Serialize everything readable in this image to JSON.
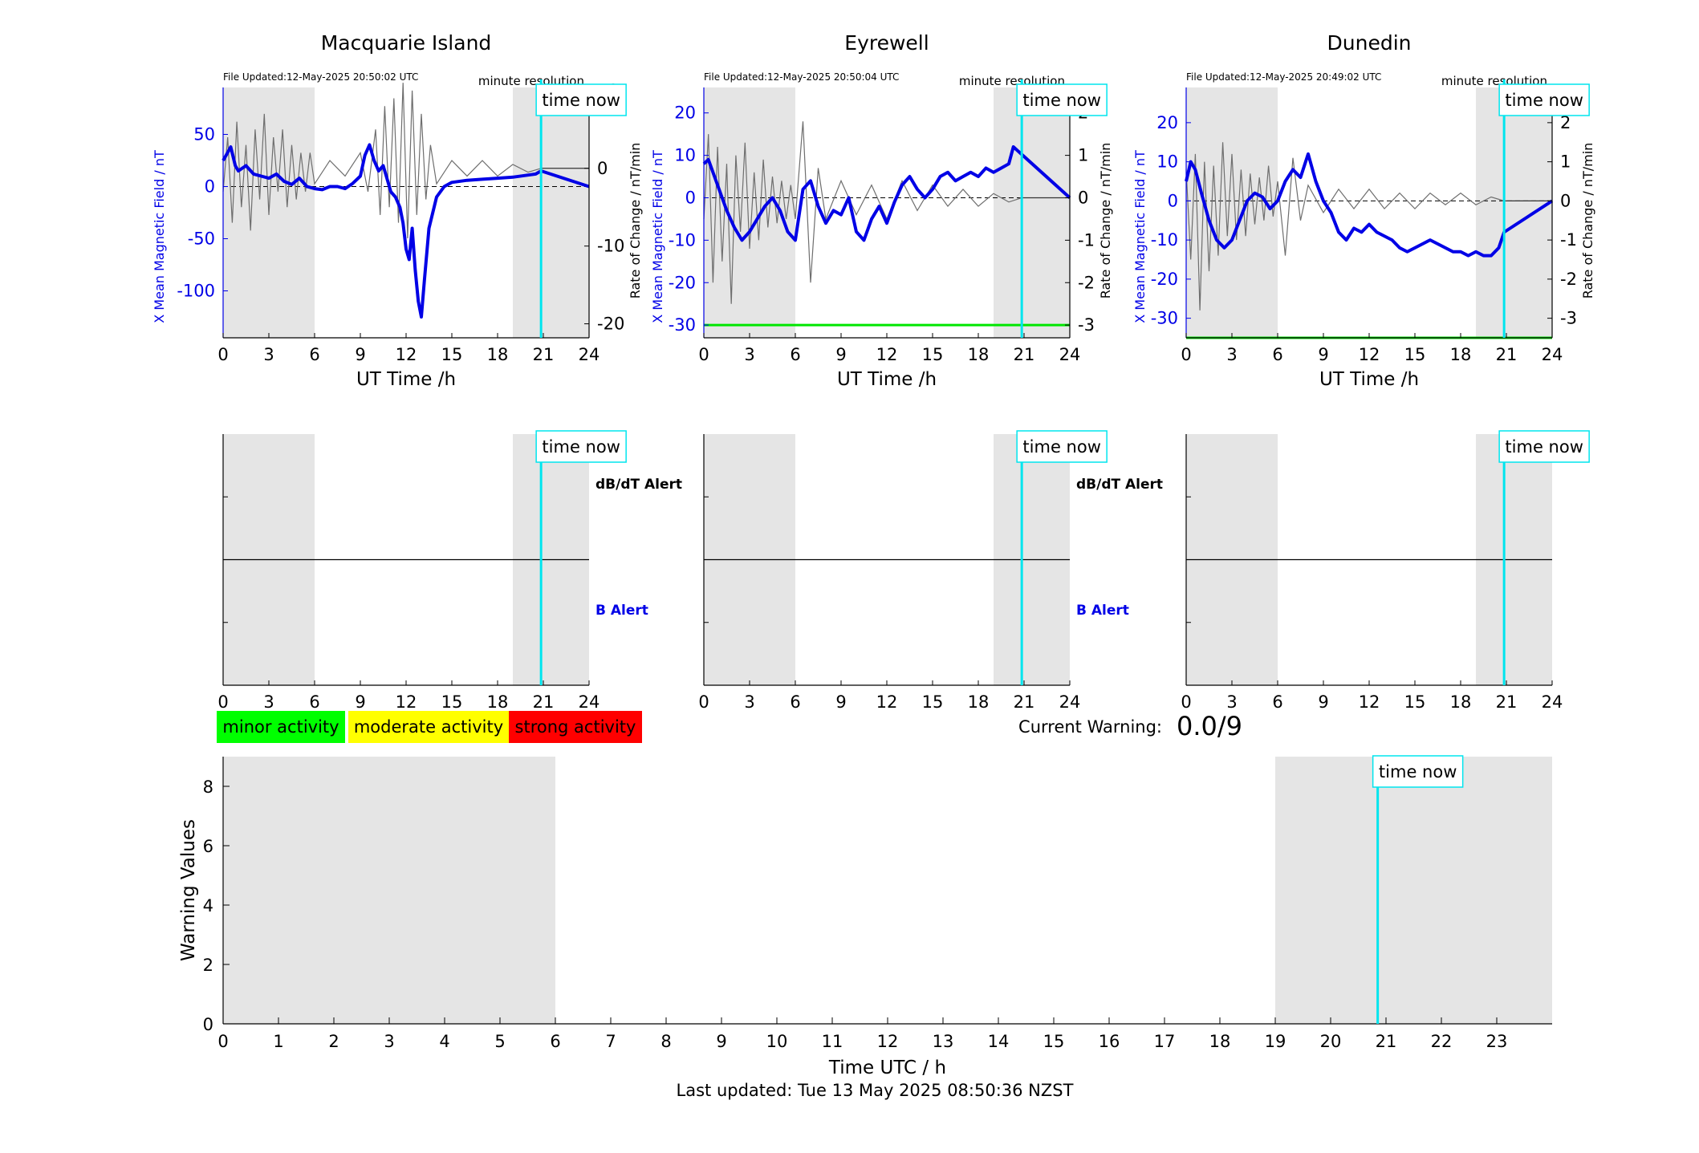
{
  "footer": {
    "last_updated": "Last updated: Tue 13 May 2025 08:50:36 NZST"
  },
  "colors": {
    "field_line": "#0000e6",
    "rate_line": "#6e6e6e",
    "now_line": "#00e5ee",
    "shade": "#e5e5e5",
    "minor": "#00ff00",
    "moderate": "#ffff00",
    "strong": "#ff0000",
    "threshold": "#00e600"
  },
  "labels": {
    "time_now": "time now",
    "minute_resolution": "minute resolution",
    "xlabel_top": "UT Time /h",
    "ylabel_left": "X Mean Magnetic Field / nT",
    "ylabel_right": "Rate of Change / nT/min",
    "dbdt_alert": "dB/dT Alert",
    "b_alert": "B Alert"
  },
  "legend": {
    "minor": "minor activity",
    "moderate": "moderate activity",
    "strong": "strong activity"
  },
  "current_warning": {
    "label": "Current Warning:",
    "value": "0.0/9"
  },
  "chart_data": [
    {
      "type": "line",
      "title": "Macquarie Island",
      "file_updated": "File Updated:12-May-2025 20:50:02 UTC",
      "xlabel": "UT Time /h",
      "ylabel": "X Mean Magnetic Field / nT",
      "ylabel_right": "Rate of Change / nT/min",
      "xlim": [
        0,
        24
      ],
      "xticks": [
        0,
        3,
        6,
        9,
        12,
        15,
        18,
        21,
        24
      ],
      "ylim": [
        -145,
        95
      ],
      "yticks": [
        50,
        0,
        -50,
        -100
      ],
      "ylim_right": [
        -21.8,
        10.4
      ],
      "yticks_right": [
        10,
        0,
        -10,
        -20
      ],
      "shaded_ranges": [
        [
          0,
          6
        ],
        [
          19,
          24
        ]
      ],
      "time_now": 20.85,
      "series": [
        {
          "name": "X Mean Magnetic Field",
          "x": [
            0,
            0.2,
            0.5,
            0.8,
            1.0,
            1.5,
            2.0,
            2.5,
            3.0,
            3.5,
            4.0,
            4.5,
            5.0,
            5.5,
            6.0,
            6.5,
            7.0,
            7.5,
            8.0,
            8.5,
            9.0,
            9.3,
            9.6,
            9.9,
            10.2,
            10.5,
            10.8,
            11.0,
            11.3,
            11.6,
            11.8,
            12.0,
            12.2,
            12.4,
            12.6,
            12.8,
            13.0,
            13.2,
            13.5,
            14.0,
            14.5,
            15.0,
            16.0,
            17.0,
            18.0,
            19.0,
            20.0,
            20.5,
            20.85,
            24
          ],
          "y": [
            25,
            30,
            38,
            20,
            15,
            20,
            12,
            10,
            8,
            12,
            5,
            2,
            8,
            0,
            -2,
            -3,
            0,
            0,
            -2,
            3,
            10,
            30,
            40,
            25,
            15,
            20,
            5,
            -5,
            -10,
            -20,
            -35,
            -60,
            -70,
            -40,
            -80,
            -110,
            -125,
            -90,
            -40,
            -10,
            0,
            4,
            6,
            7,
            8,
            9,
            11,
            12,
            15,
            0
          ],
          "style": "thick"
        },
        {
          "name": "Rate of Change",
          "x": [
            0,
            0.3,
            0.6,
            0.9,
            1.2,
            1.5,
            1.8,
            2.1,
            2.4,
            2.7,
            3.0,
            3.3,
            3.6,
            3.9,
            4.2,
            4.5,
            4.8,
            5.1,
            5.4,
            5.7,
            6.0,
            7.0,
            8.0,
            9.0,
            9.5,
            10.0,
            10.3,
            10.6,
            10.9,
            11.2,
            11.5,
            11.8,
            12.1,
            12.4,
            12.7,
            13.0,
            13.3,
            13.6,
            14.0,
            15.0,
            16.0,
            17.0,
            18.0,
            19.0,
            20.0,
            20.85
          ],
          "y": [
            -3,
            4,
            -7,
            6,
            -5,
            3,
            -8,
            5,
            -4,
            7,
            -6,
            4,
            -3,
            5,
            -5,
            3,
            -4,
            2,
            -3,
            2,
            -2,
            1,
            -1,
            2,
            -3,
            5,
            -6,
            8,
            -5,
            9,
            -7,
            11,
            -9,
            10,
            -6,
            7,
            -4,
            3,
            -2,
            1,
            -1,
            1,
            -1,
            0.5,
            -0.5,
            0
          ]
        }
      ]
    },
    {
      "type": "line",
      "title": "Eyrewell",
      "file_updated": "File Updated:12-May-2025 20:50:04 UTC",
      "xlabel": "UT Time /h",
      "ylabel": "X Mean Magnetic Field / nT",
      "ylabel_right": "Rate of Change / nT/min",
      "xlim": [
        0,
        24
      ],
      "xticks": [
        0,
        3,
        6,
        9,
        12,
        15,
        18,
        21,
        24
      ],
      "ylim": [
        -33,
        26
      ],
      "yticks": [
        20,
        10,
        0,
        -10,
        -20,
        -30
      ],
      "ylim_right": [
        -3.3,
        2.6
      ],
      "yticks_right": [
        2,
        1,
        0,
        -1,
        -2,
        -3
      ],
      "shaded_ranges": [
        [
          0,
          6
        ],
        [
          19,
          24
        ]
      ],
      "time_now": 20.85,
      "threshold": -30,
      "series": [
        {
          "name": "X Mean Magnetic Field",
          "x": [
            0,
            0.3,
            0.6,
            1.0,
            1.5,
            2.0,
            2.5,
            3.0,
            3.5,
            4.0,
            4.5,
            5.0,
            5.5,
            6.0,
            6.5,
            7.0,
            7.5,
            8.0,
            8.5,
            9.0,
            9.5,
            10.0,
            10.5,
            11.0,
            11.5,
            12.0,
            12.5,
            13.0,
            13.5,
            14.0,
            14.5,
            15.0,
            15.5,
            16.0,
            16.5,
            17.0,
            17.5,
            18.0,
            18.5,
            19.0,
            19.5,
            20.0,
            20.3,
            24
          ],
          "y": [
            8,
            9,
            6,
            2,
            -3,
            -7,
            -10,
            -8,
            -5,
            -2,
            0,
            -3,
            -8,
            -10,
            2,
            4,
            -2,
            -6,
            -3,
            -4,
            0,
            -8,
            -10,
            -5,
            -2,
            -6,
            -1,
            3,
            5,
            2,
            0,
            2,
            5,
            6,
            4,
            5,
            6,
            5,
            7,
            6,
            7,
            8,
            12,
            0
          ],
          "style": "thick"
        },
        {
          "name": "Rate of Change",
          "x": [
            0,
            0.3,
            0.6,
            0.9,
            1.2,
            1.5,
            1.8,
            2.1,
            2.4,
            2.7,
            3.0,
            3.3,
            3.6,
            3.9,
            4.2,
            4.5,
            4.8,
            5.1,
            5.4,
            5.7,
            6.0,
            6.5,
            7.0,
            7.5,
            8.0,
            9.0,
            10.0,
            11.0,
            12.0,
            13.0,
            14.0,
            15.0,
            16.0,
            17.0,
            18.0,
            19.0,
            20.0,
            20.85
          ],
          "y": [
            -0.5,
            1.5,
            -2,
            1.2,
            -1.5,
            0.8,
            -2.5,
            1.0,
            -0.8,
            1.3,
            -1.2,
            0.6,
            -1.0,
            0.9,
            -0.7,
            0.5,
            -0.6,
            0.4,
            -0.5,
            0.3,
            -0.5,
            1.8,
            -2.0,
            0.7,
            -0.5,
            0.4,
            -0.4,
            0.3,
            -0.5,
            0.4,
            -0.3,
            0.3,
            -0.2,
            0.2,
            -0.2,
            0.1,
            -0.1,
            0
          ]
        }
      ]
    },
    {
      "type": "line",
      "title": "Dunedin",
      "file_updated": "File Updated:12-May-2025 20:49:02 UTC",
      "xlabel": "UT Time /h",
      "ylabel": "X Mean Magnetic Field / nT",
      "ylabel_right": "Rate of Change / nT/min",
      "xlim": [
        0,
        24
      ],
      "xticks": [
        0,
        3,
        6,
        9,
        12,
        15,
        18,
        21,
        24
      ],
      "ylim": [
        -35,
        29
      ],
      "yticks": [
        20,
        10,
        0,
        -10,
        -20,
        -30
      ],
      "ylim_right": [
        -3.5,
        2.9
      ],
      "yticks_right": [
        2,
        1,
        0,
        -1,
        -2,
        -3
      ],
      "shaded_ranges": [
        [
          0,
          6
        ],
        [
          19,
          24
        ]
      ],
      "time_now": 20.85,
      "threshold": -35,
      "series": [
        {
          "name": "X Mean Magnetic Field",
          "x": [
            0,
            0.3,
            0.6,
            1.0,
            1.5,
            2.0,
            2.5,
            3.0,
            3.5,
            4.0,
            4.5,
            5.0,
            5.5,
            6.0,
            6.5,
            7.0,
            7.5,
            8.0,
            8.5,
            9.0,
            9.5,
            10.0,
            10.5,
            11.0,
            11.5,
            12.0,
            12.5,
            13.0,
            13.5,
            14.0,
            14.5,
            15.0,
            15.5,
            16.0,
            16.5,
            17.0,
            17.5,
            18.0,
            18.5,
            19.0,
            19.5,
            20.0,
            20.5,
            20.85,
            24
          ],
          "y": [
            5,
            10,
            8,
            2,
            -5,
            -10,
            -12,
            -10,
            -5,
            0,
            2,
            1,
            -2,
            0,
            5,
            8,
            6,
            12,
            5,
            0,
            -3,
            -8,
            -10,
            -7,
            -8,
            -6,
            -8,
            -9,
            -10,
            -12,
            -13,
            -12,
            -11,
            -10,
            -11,
            -12,
            -13,
            -13,
            -14,
            -13,
            -14,
            -14,
            -12,
            -8,
            0
          ]
        },
        {
          "name": "Rate of Change",
          "x": [
            0,
            0.3,
            0.6,
            0.9,
            1.2,
            1.5,
            1.8,
            2.1,
            2.4,
            2.7,
            3.0,
            3.3,
            3.6,
            3.9,
            4.2,
            4.5,
            4.8,
            5.1,
            5.4,
            5.7,
            6.0,
            6.5,
            7.0,
            7.5,
            8.0,
            9.0,
            10.0,
            11.0,
            12.0,
            13.0,
            14.0,
            15.0,
            16.0,
            17.0,
            18.0,
            19.0,
            20.0,
            20.85
          ],
          "y": [
            0.8,
            -1.5,
            1.2,
            -2.8,
            1.0,
            -1.8,
            0.9,
            -1.4,
            1.5,
            -0.9,
            1.2,
            -1.0,
            0.8,
            -0.9,
            0.7,
            -0.6,
            0.6,
            -0.5,
            0.9,
            -0.4,
            0.5,
            -1.4,
            1.1,
            -0.5,
            0.4,
            -0.3,
            0.3,
            -0.2,
            0.3,
            -0.2,
            0.2,
            -0.2,
            0.2,
            -0.1,
            0.2,
            -0.1,
            0.1,
            0
          ]
        }
      ]
    },
    {
      "type": "line",
      "title": "",
      "ylabel": "",
      "xlim": [
        0,
        24
      ],
      "xticks": [
        0,
        3,
        6,
        9,
        12,
        15,
        18,
        21,
        24
      ],
      "shaded_ranges": [
        [
          0,
          6
        ],
        [
          19,
          24
        ]
      ],
      "time_now": 20.85,
      "annotations": [
        "dB/dT Alert",
        "B Alert"
      ],
      "series": []
    },
    {
      "type": "line",
      "title": "",
      "ylabel": "",
      "xlim": [
        0,
        24
      ],
      "xticks": [
        0,
        3,
        6,
        9,
        12,
        15,
        18,
        21,
        24
      ],
      "shaded_ranges": [
        [
          0,
          6
        ],
        [
          19,
          24
        ]
      ],
      "time_now": 20.85,
      "annotations": [
        "dB/dT Alert",
        "B Alert"
      ],
      "series": []
    },
    {
      "type": "line",
      "title": "",
      "ylabel": "",
      "xlim": [
        0,
        24
      ],
      "xticks": [
        0,
        3,
        6,
        9,
        12,
        15,
        18,
        21,
        24
      ],
      "shaded_ranges": [
        [
          0,
          6
        ],
        [
          19,
          24
        ]
      ],
      "time_now": 20.85,
      "series": []
    },
    {
      "type": "line",
      "title": "",
      "xlabel": "Time UTC / h",
      "ylabel": "Warning Values",
      "xlim": [
        0,
        24
      ],
      "xticks": [
        0,
        1,
        2,
        3,
        4,
        5,
        6,
        7,
        8,
        9,
        10,
        11,
        12,
        13,
        14,
        15,
        16,
        17,
        18,
        19,
        20,
        21,
        22,
        23
      ],
      "ylim": [
        0,
        9
      ],
      "yticks": [
        0,
        2,
        4,
        6,
        8
      ],
      "shaded_ranges": [
        [
          0,
          6
        ],
        [
          19,
          24
        ]
      ],
      "time_now": 20.85,
      "series": []
    }
  ]
}
